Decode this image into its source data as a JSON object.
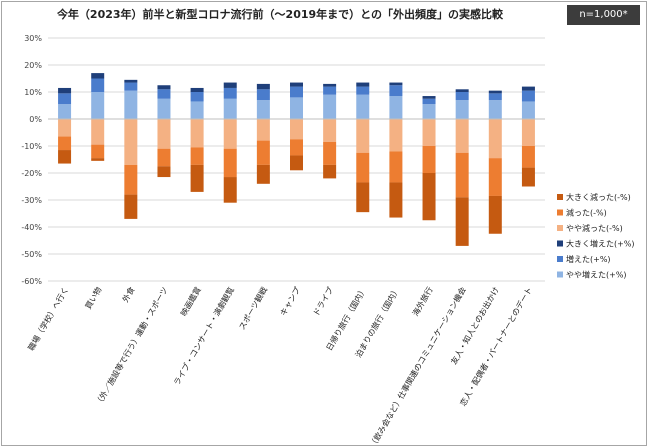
{
  "header": {
    "title": "今年（2023年）前半と新型コロナ流行前（〜2019年まで）との「外出頻度」の実感比較",
    "badge": "n=1,000*"
  },
  "chart_data": {
    "type": "bar",
    "stacked": true,
    "ylim": [
      -60,
      30
    ],
    "yticks": [
      30,
      20,
      10,
      0,
      -10,
      -20,
      -30,
      -40,
      -50,
      -60
    ],
    "ytick_labels": [
      "30%",
      "20%",
      "10%",
      "0%",
      "-10%",
      "-20%",
      "-30%",
      "-40%",
      "-50%",
      "-60%"
    ],
    "grid": true,
    "legend_position": "right",
    "categories": [
      "職場（学校）へ行く",
      "買い物",
      "外食",
      "（外／施設等で行う）運動・スポーツ",
      "映画鑑賞",
      "ライブ・コンサート・演劇観覧",
      "スポーツ観戦",
      "キャンプ",
      "ドライブ",
      "日帰り旅行（国内）",
      "泊まりの旅行（国内）",
      "海外旅行",
      "（飲み会など）仕事関連のコミュニケーション機会",
      "友人・知人とのお出かけ",
      "恋人・配偶者・パートナーとのデート"
    ],
    "series": [
      {
        "name": "やや増えた(+%)",
        "color": "#8fb4e3",
        "values": [
          5.5,
          10,
          10.5,
          7.5,
          6.5,
          7.5,
          7,
          8,
          9,
          9,
          8.5,
          5.5,
          7,
          7,
          6.5
        ]
      },
      {
        "name": "増えた(+%)",
        "color": "#4a7ccc",
        "values": [
          4,
          5,
          3,
          3.5,
          3.5,
          4,
          4,
          4,
          3,
          3,
          4,
          2,
          3,
          2.5,
          4
        ]
      },
      {
        "name": "大きく増えた(+%)",
        "color": "#1f3f7a",
        "values": [
          2,
          2,
          1,
          1.5,
          1.5,
          2,
          2,
          1.5,
          1,
          1.5,
          1,
          1,
          1,
          1,
          1.5
        ]
      },
      {
        "name": "やや減った(-%)",
        "color": "#f4b183",
        "values": [
          -6.5,
          -9.5,
          -17,
          -11,
          -10.5,
          -11,
          -8,
          -7.5,
          -8.5,
          -12.5,
          -12,
          -10,
          -12.5,
          -14.5,
          -10
        ]
      },
      {
        "name": "減った(-%)",
        "color": "#ed7d31",
        "values": [
          -5,
          -5,
          -11,
          -6.5,
          -6.5,
          -10.5,
          -9,
          -6,
          -8.5,
          -11,
          -11.5,
          -10,
          -16.5,
          -14,
          -8
        ]
      },
      {
        "name": "大きく減った(-%)",
        "color": "#c55a11",
        "values": [
          -5,
          -1,
          -9,
          -4,
          -10,
          -9.5,
          -7,
          -5.5,
          -5,
          -11,
          -13,
          -17.5,
          -18,
          -14,
          -7
        ]
      }
    ],
    "legend_order": [
      "大きく減った(-%)",
      "減った(-%)",
      "やや減った(-%)",
      "大きく増えた(+%)",
      "増えた(+%)",
      "やや増えた(+%)"
    ]
  }
}
